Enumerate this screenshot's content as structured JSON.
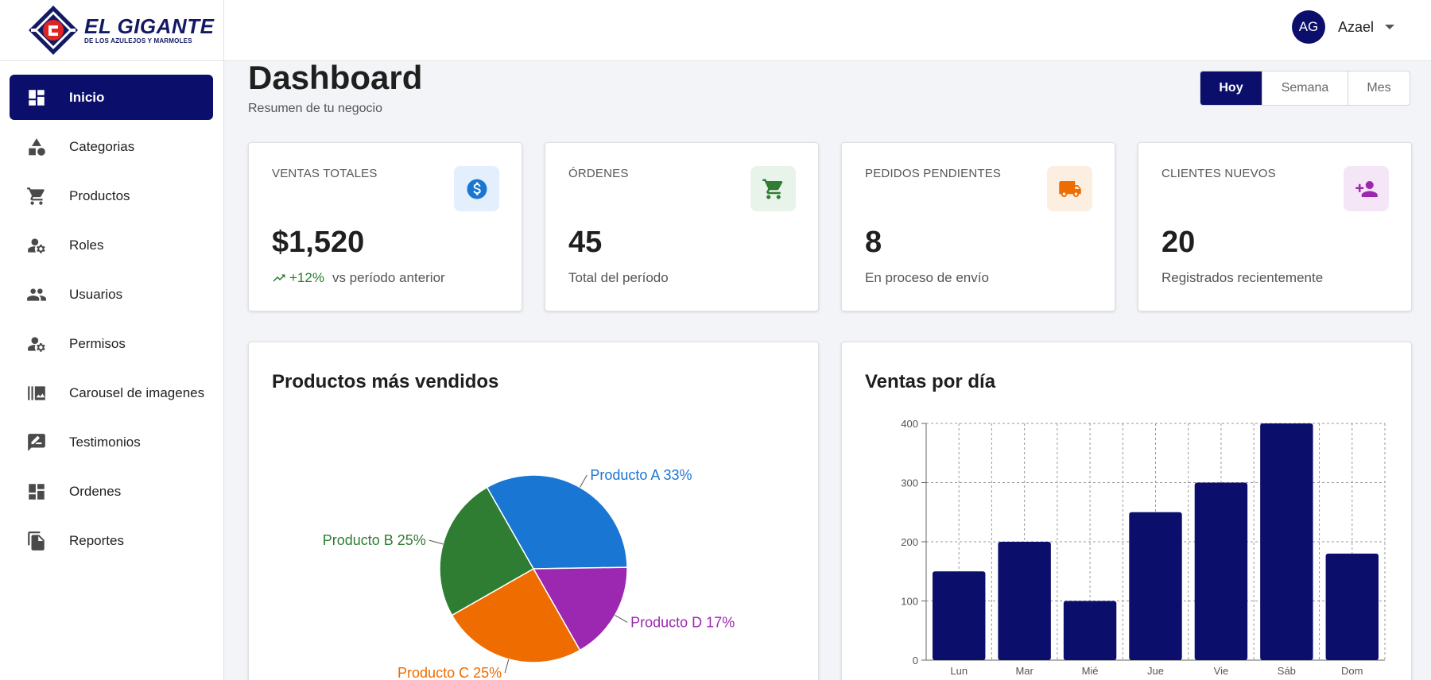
{
  "brand": {
    "title": "EL GIGANTE",
    "subtitle": "DE LOS AZULEJOS Y MARMOLES"
  },
  "sidebar": {
    "items": [
      {
        "label": "Inicio",
        "icon": "dashboard-icon",
        "active": true
      },
      {
        "label": "Categorias",
        "icon": "category-icon",
        "active": false
      },
      {
        "label": "Productos",
        "icon": "cart-icon",
        "active": false
      },
      {
        "label": "Roles",
        "icon": "user-gear-icon",
        "active": false
      },
      {
        "label": "Usuarios",
        "icon": "people-icon",
        "active": false
      },
      {
        "label": "Permisos",
        "icon": "user-gear-icon",
        "active": false
      },
      {
        "label": "Carousel de imagenes",
        "icon": "photo-library-icon",
        "active": false
      },
      {
        "label": "Testimonios",
        "icon": "rate-review-icon",
        "active": false
      },
      {
        "label": "Ordenes",
        "icon": "dashboard-icon",
        "active": false
      },
      {
        "label": "Reportes",
        "icon": "file-copy-icon",
        "active": false
      }
    ]
  },
  "user": {
    "initials": "AG",
    "name": "Azael"
  },
  "header": {
    "title": "Dashboard",
    "subtitle": "Resumen de tu negocio"
  },
  "period": {
    "options": [
      "Hoy",
      "Semana",
      "Mes"
    ],
    "selected": "Hoy"
  },
  "stats": [
    {
      "label": "VENTAS TOTALES",
      "value": "$1,520",
      "trend": "+12%",
      "foot": "vs período anterior",
      "icon": "dollar-icon",
      "icon_color": "#1976d2",
      "icon_bg": "#e3effc"
    },
    {
      "label": "ÓRDENES",
      "value": "45",
      "foot": "Total del período",
      "icon": "cart-icon",
      "icon_color": "#2e7d32",
      "icon_bg": "#e8f3ea"
    },
    {
      "label": "PEDIDOS PENDIENTES",
      "value": "8",
      "foot": "En proceso de envío",
      "icon": "truck-icon",
      "icon_color": "#ef6c00",
      "icon_bg": "#fdeee2"
    },
    {
      "label": "CLIENTES NUEVOS",
      "value": "20",
      "foot": "Registrados recientemente",
      "icon": "person-add-icon",
      "icon_color": "#9c27b0",
      "icon_bg": "#f4e6f7"
    }
  ],
  "pie_panel": {
    "title": "Productos más vendidos"
  },
  "bar_panel": {
    "title": "Ventas por día"
  },
  "chart_data": [
    {
      "type": "pie",
      "title": "Productos más vendidos",
      "slices": [
        {
          "label": "Producto A 33%",
          "value": 33,
          "color": "#1976d2"
        },
        {
          "label": "Producto D 17%",
          "value": 17,
          "color": "#9c27b0"
        },
        {
          "label": "Producto C 25%",
          "value": 25,
          "color": "#ef6c00"
        },
        {
          "label": "Producto B 25%",
          "value": 25,
          "color": "#2e7d32"
        }
      ]
    },
    {
      "type": "bar",
      "title": "Ventas por día",
      "categories": [
        "Lun",
        "Mar",
        "Mié",
        "Jue",
        "Vie",
        "Sáb",
        "Dom"
      ],
      "values": [
        150,
        200,
        100,
        250,
        300,
        400,
        180
      ],
      "ylim": [
        0,
        400
      ],
      "yticks": [
        0,
        100,
        200,
        300,
        400
      ],
      "color": "#0b0f6b",
      "grid": true
    }
  ]
}
